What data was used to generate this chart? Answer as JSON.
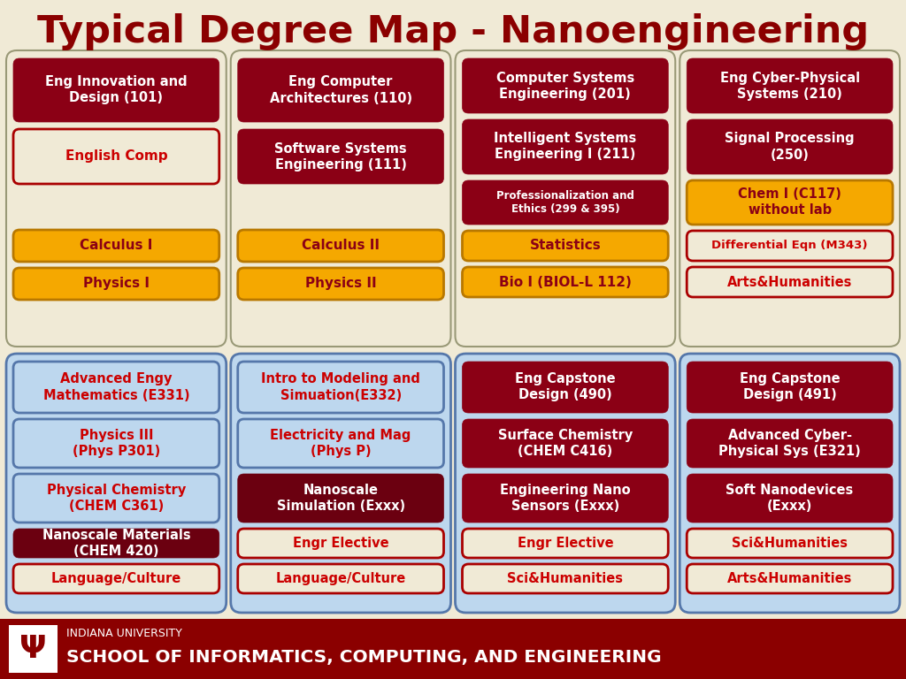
{
  "title": "Typical Degree Map - Nanoengineering",
  "title_color": "#8B0000",
  "bg_color": "#F0EAD6",
  "panel1_bg": "#F0EAD6",
  "panel1_border": "#999977",
  "panel2_bg": "#BDD7EE",
  "panel2_border": "#5577AA",
  "footer_bg": "#8B0000",
  "footer_text1": "INDIANA UNIVERSITY",
  "footer_text2": "SCHOOL OF INFORMATICS, COMPUTING, AND ENGINEERING",
  "row1_cols": [
    [
      {
        "text": "Eng Innovation and\nDesign (101)",
        "bg": "#8B0015",
        "fg": "#FFFFFF",
        "fs": 10.5
      },
      {
        "text": "English Comp",
        "bg": "#F0EAD6",
        "fg": "#CC0000",
        "fs": 11
      },
      {
        "text": "Calculus I",
        "bg": "#F5A800",
        "fg": "#8B0015",
        "fs": 11
      },
      {
        "text": "Physics I",
        "bg": "#F5A800",
        "fg": "#8B0015",
        "fs": 11
      }
    ],
    [
      {
        "text": "Eng Computer\nArchitectures (110)",
        "bg": "#8B0015",
        "fg": "#FFFFFF",
        "fs": 10.5
      },
      {
        "text": "Software Systems\nEngineering (111)",
        "bg": "#8B0015",
        "fg": "#FFFFFF",
        "fs": 10.5
      },
      {
        "text": "Calculus II",
        "bg": "#F5A800",
        "fg": "#8B0015",
        "fs": 11
      },
      {
        "text": "Physics II",
        "bg": "#F5A800",
        "fg": "#8B0015",
        "fs": 11
      }
    ],
    [
      {
        "text": "Computer Systems\nEngineering (201)",
        "bg": "#8B0015",
        "fg": "#FFFFFF",
        "fs": 10.5
      },
      {
        "text": "Intelligent Systems\nEngineering I (211)",
        "bg": "#8B0015",
        "fg": "#FFFFFF",
        "fs": 10.5
      },
      {
        "text": "Professionalization and\nEthics (299 & 395)",
        "bg": "#8B0015",
        "fg": "#FFFFFF",
        "fs": 8.5
      },
      {
        "text": "Statistics",
        "bg": "#F5A800",
        "fg": "#8B0015",
        "fs": 11
      },
      {
        "text": "Bio I (BIOL-L 112)",
        "bg": "#F5A800",
        "fg": "#8B0015",
        "fs": 11
      }
    ],
    [
      {
        "text": "Eng Cyber-Physical\nSystems (210)",
        "bg": "#8B0015",
        "fg": "#FFFFFF",
        "fs": 10.5
      },
      {
        "text": "Signal Processing\n(250)",
        "bg": "#8B0015",
        "fg": "#FFFFFF",
        "fs": 10.5
      },
      {
        "text": "Chem I (C117)\nwithout lab",
        "bg": "#F5A800",
        "fg": "#8B0015",
        "fs": 10.5
      },
      {
        "text": "Differential Eqn (M343)",
        "bg": "#F0EAD6",
        "fg": "#CC0000",
        "fs": 9.5
      },
      {
        "text": "Arts&Humanities",
        "bg": "#F0EAD6",
        "fg": "#CC0000",
        "fs": 10.5
      }
    ]
  ],
  "row2_cols": [
    [
      {
        "text": "Advanced Engy\nMathematics (E331)",
        "bg": "#BDD7EE",
        "fg": "#CC0000",
        "fs": 10.5
      },
      {
        "text": "Physics III\n(Phys P301)",
        "bg": "#BDD7EE",
        "fg": "#CC0000",
        "fs": 10.5
      },
      {
        "text": "Physical Chemistry\n(CHEM C361)",
        "bg": "#BDD7EE",
        "fg": "#CC0000",
        "fs": 10.5
      },
      {
        "text": "Nanoscale Materials\n(CHEM 420)",
        "bg": "#6B0010",
        "fg": "#FFFFFF",
        "fs": 10.5
      },
      {
        "text": "Language/Culture",
        "bg": "#F0EAD6",
        "fg": "#CC0000",
        "fs": 10.5
      }
    ],
    [
      {
        "text": "Intro to Modeling and\nSimuation(E332)",
        "bg": "#BDD7EE",
        "fg": "#CC0000",
        "fs": 10.5
      },
      {
        "text": "Electricity and Mag\n(Phys P)",
        "bg": "#BDD7EE",
        "fg": "#CC0000",
        "fs": 10.5
      },
      {
        "text": "Nanoscale\nSimulation (Exxx)",
        "bg": "#6B0010",
        "fg": "#FFFFFF",
        "fs": 10.5
      },
      {
        "text": "Engr Elective",
        "bg": "#F0EAD6",
        "fg": "#CC0000",
        "fs": 10.5
      },
      {
        "text": "Language/Culture",
        "bg": "#F0EAD6",
        "fg": "#CC0000",
        "fs": 10.5
      }
    ],
    [
      {
        "text": "Eng Capstone\nDesign (490)",
        "bg": "#8B0015",
        "fg": "#FFFFFF",
        "fs": 10.5
      },
      {
        "text": "Surface Chemistry\n(CHEM C416)",
        "bg": "#8B0015",
        "fg": "#FFFFFF",
        "fs": 10.5
      },
      {
        "text": "Engineering Nano\nSensors (Exxx)",
        "bg": "#8B0015",
        "fg": "#FFFFFF",
        "fs": 10.5
      },
      {
        "text": "Engr Elective",
        "bg": "#F0EAD6",
        "fg": "#CC0000",
        "fs": 10.5
      },
      {
        "text": "Sci&Humanities",
        "bg": "#F0EAD6",
        "fg": "#CC0000",
        "fs": 10.5
      }
    ],
    [
      {
        "text": "Eng Capstone\nDesign (491)",
        "bg": "#8B0015",
        "fg": "#FFFFFF",
        "fs": 10.5
      },
      {
        "text": "Advanced Cyber-\nPhysical Sys (E321)",
        "bg": "#8B0015",
        "fg": "#FFFFFF",
        "fs": 10.5
      },
      {
        "text": "Soft Nanodevices\n(Exxx)",
        "bg": "#8B0015",
        "fg": "#FFFFFF",
        "fs": 10.5
      },
      {
        "text": "Sci&Humanities",
        "bg": "#F0EAD6",
        "fg": "#CC0000",
        "fs": 10.5
      },
      {
        "text": "Arts&Humanities",
        "bg": "#F0EAD6",
        "fg": "#CC0000",
        "fs": 10.5
      }
    ]
  ]
}
